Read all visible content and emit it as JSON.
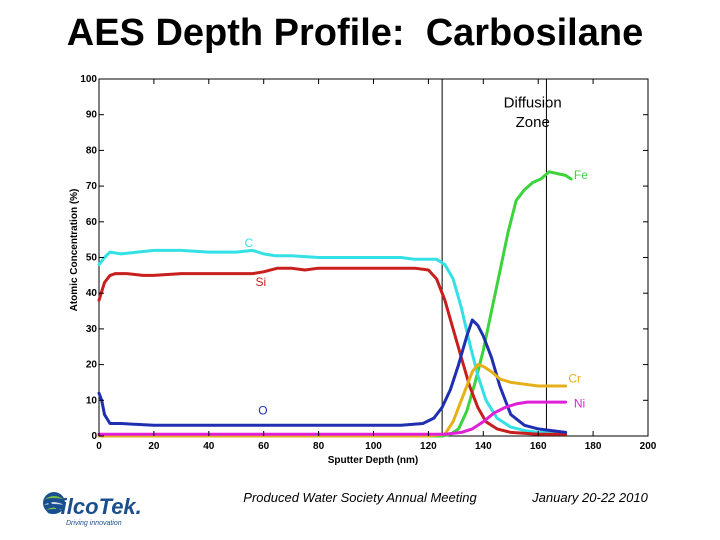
{
  "slide": {
    "title": "AES Depth Profile:  Carbosilane",
    "footer_left": "Produced Water Society Annual Meeting",
    "footer_right": "January 20-22 2010",
    "logo_name": "SilcoTek.",
    "logo_tagline": "Driving innovation"
  },
  "colors": {
    "text": "#000000",
    "logo_primary": "#1a4f8f",
    "logo_accent": "#7cc242"
  },
  "chart_data": {
    "type": "line",
    "title": "",
    "xlabel": "Sputter Depth (nm)",
    "ylabel": "Atomic Concentration (%)",
    "xlim": [
      0,
      200
    ],
    "ylim": [
      0,
      100
    ],
    "xticks": [
      0,
      20,
      40,
      60,
      80,
      100,
      120,
      140,
      160,
      180,
      200
    ],
    "yticks": [
      0,
      10,
      20,
      30,
      40,
      50,
      60,
      70,
      80,
      90,
      100
    ],
    "grid": false,
    "markers": [
      {
        "x": 125,
        "label": "Diffusion",
        "label2": "Zone"
      },
      {
        "x": 163
      }
    ],
    "series": [
      {
        "name": "Fe",
        "color": "#3cd33c",
        "label_at": [
          173,
          72
        ],
        "x": [
          0,
          20,
          40,
          60,
          80,
          100,
          120,
          125,
          128,
          131,
          134,
          137,
          140,
          143,
          146,
          149,
          152,
          155,
          158,
          161,
          164,
          167,
          170,
          172
        ],
        "y": [
          0,
          0,
          0,
          0,
          0,
          0,
          0,
          0,
          0.5,
          2,
          7,
          15,
          24,
          35,
          46,
          57,
          66,
          69,
          71,
          72,
          74,
          73.5,
          73,
          72
        ]
      },
      {
        "name": "C",
        "color": "#33e0e6",
        "label_at": [
          53,
          53
        ],
        "x": [
          0,
          2,
          4,
          8,
          14,
          20,
          30,
          40,
          50,
          56,
          60,
          64,
          70,
          80,
          90,
          100,
          110,
          115,
          120,
          123,
          126,
          129,
          132,
          135,
          138,
          141,
          145,
          150,
          155,
          160,
          165,
          170
        ],
        "y": [
          48,
          50,
          51.5,
          51,
          51.5,
          52,
          52,
          51.5,
          51.5,
          52,
          51,
          50.5,
          50.5,
          50,
          50,
          50,
          50,
          49.5,
          49.5,
          49.5,
          48,
          44,
          36,
          26,
          17,
          10,
          5,
          2.5,
          1.5,
          1,
          1,
          1
        ]
      },
      {
        "name": "Si",
        "color": "#c81e1e",
        "label_at": [
          57,
          42
        ],
        "x": [
          0,
          2,
          4,
          6,
          10,
          16,
          20,
          30,
          40,
          50,
          56,
          60,
          65,
          70,
          75,
          80,
          90,
          100,
          110,
          115,
          120,
          123,
          126,
          129,
          132,
          135,
          138,
          141,
          145,
          150,
          160,
          170
        ],
        "y": [
          38,
          43,
          45,
          45.5,
          45.5,
          45,
          45,
          45.5,
          45.5,
          45.5,
          45.5,
          46,
          47,
          47,
          46.5,
          47,
          47,
          47,
          47,
          47,
          46.5,
          44,
          38,
          30,
          22,
          14,
          8,
          4,
          2,
          1,
          0.5,
          0.5
        ]
      },
      {
        "name": "O",
        "color": "#1f2fb0",
        "label_at": [
          58,
          6
        ],
        "x": [
          0,
          1,
          2,
          4,
          8,
          20,
          40,
          60,
          80,
          90,
          100,
          110,
          118,
          122,
          125,
          128,
          131,
          134,
          136,
          138,
          140,
          143,
          146,
          150,
          155,
          160,
          165,
          170
        ],
        "y": [
          12,
          10,
          6,
          3.5,
          3.5,
          3,
          3,
          3,
          3,
          3,
          3,
          3,
          3.5,
          5,
          8,
          13,
          20,
          28,
          32.5,
          31,
          28,
          22,
          14,
          6,
          3,
          2,
          1.5,
          1
        ]
      },
      {
        "name": "Cr",
        "color": "#e6b01a",
        "label_at": [
          171,
          15
        ],
        "x": [
          0,
          20,
          40,
          60,
          80,
          100,
          120,
          126,
          129,
          132,
          134,
          136,
          138,
          140,
          143,
          146,
          150,
          155,
          160,
          165,
          170
        ],
        "y": [
          0,
          0,
          0,
          0,
          0,
          0,
          0,
          0.5,
          4,
          10,
          14,
          18,
          20,
          19.5,
          18,
          16,
          15,
          14.5,
          14,
          14,
          14
        ]
      },
      {
        "name": "Ni",
        "color": "#e020d8",
        "label_at": [
          173,
          8
        ],
        "x": [
          0,
          20,
          40,
          60,
          80,
          100,
          110,
          120,
          126,
          132,
          136,
          140,
          144,
          148,
          152,
          156,
          160,
          165,
          170
        ],
        "y": [
          0.5,
          0.5,
          0.5,
          0.5,
          0.5,
          0.5,
          0.5,
          0.5,
          0.5,
          1,
          2,
          4,
          6.5,
          8,
          9,
          9.5,
          9.5,
          9.5,
          9.5
        ]
      }
    ]
  }
}
